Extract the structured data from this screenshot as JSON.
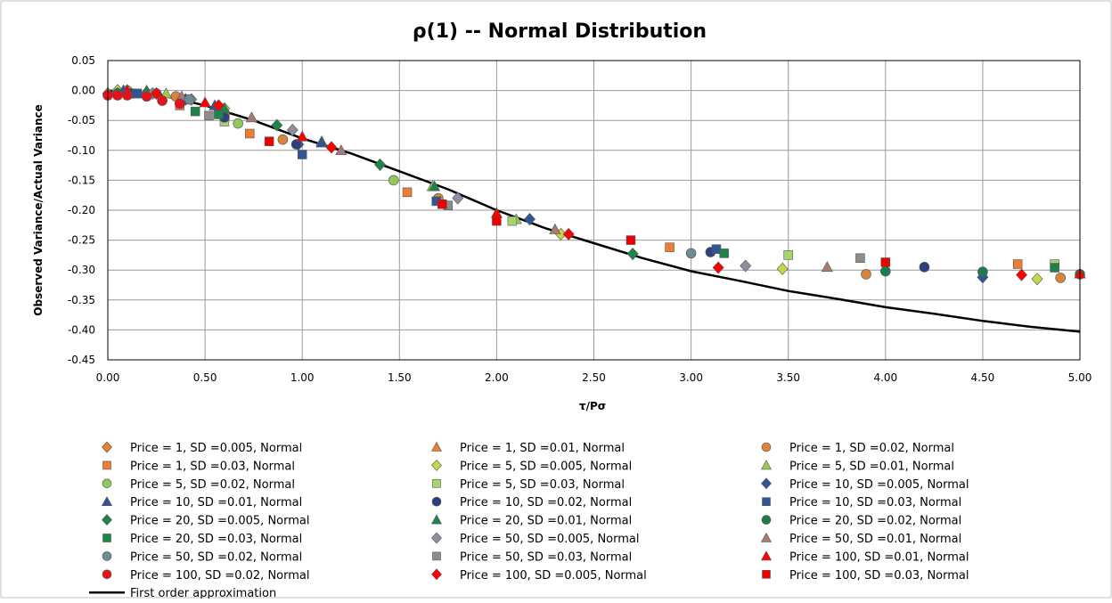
{
  "chart_data": {
    "type": "scatter",
    "title": "ρ(1) -- Normal Distribution",
    "xlabel": "τ/Pσ",
    "ylabel": "Observed Variance/Actual Variance",
    "xlim": [
      0,
      5
    ],
    "ylim": [
      -0.45,
      0.05
    ],
    "x_ticks": [
      "0.00",
      "0.50",
      "1.00",
      "1.50",
      "2.00",
      "2.50",
      "3.00",
      "3.50",
      "4.00",
      "4.50",
      "5.00"
    ],
    "y_ticks": [
      "0.05",
      "0.00",
      "-0.05",
      "-0.10",
      "-0.15",
      "-0.20",
      "-0.25",
      "-0.30",
      "-0.35",
      "-0.40",
      "-0.45"
    ],
    "grid": true,
    "legend_position": "bottom",
    "series": [
      {
        "name": "Price = 1, SD =0.005, Normal",
        "marker": "diamond",
        "color": "#ED7D31",
        "points": [
          [
            0.0,
            -0.005
          ],
          [
            0.05,
            0.0
          ],
          [
            0.1,
            0.0
          ]
        ]
      },
      {
        "name": "Price = 1, SD =0.01, Normal",
        "marker": "triangle",
        "color": "#ED7D31",
        "points": [
          [
            0.05,
            0.0
          ],
          [
            0.1,
            0.0
          ],
          [
            0.2,
            -0.005
          ]
        ]
      },
      {
        "name": "Price = 1, SD =0.02, Normal",
        "marker": "circle",
        "color": "#D8843D",
        "points": [
          [
            0.1,
            0.0
          ],
          [
            0.2,
            -0.005
          ],
          [
            0.35,
            -0.01
          ],
          [
            0.6,
            -0.04
          ],
          [
            0.9,
            -0.082
          ],
          [
            1.7,
            -0.18
          ],
          [
            3.9,
            -0.307
          ],
          [
            4.9,
            -0.313
          ]
        ]
      },
      {
        "name": "Price = 1, SD =0.03, Normal",
        "marker": "square",
        "color": "#ED7D31",
        "points": [
          [
            0.15,
            -0.005
          ],
          [
            0.37,
            -0.025
          ],
          [
            0.73,
            -0.072
          ],
          [
            1.54,
            -0.17
          ],
          [
            2.89,
            -0.262
          ],
          [
            4.68,
            -0.29
          ]
        ]
      },
      {
        "name": "Price = 5, SD =0.005, Normal",
        "marker": "diamond",
        "color": "#C6D64B",
        "points": [
          [
            0.05,
            0.0
          ],
          [
            0.1,
            -0.005
          ],
          [
            0.6,
            -0.03
          ],
          [
            2.33,
            -0.24
          ],
          [
            3.47,
            -0.298
          ],
          [
            4.78,
            -0.315
          ]
        ]
      },
      {
        "name": "Price = 5, SD =0.01, Normal",
        "marker": "triangle",
        "color": "#9BCB53",
        "points": [
          [
            0.08,
            0.0
          ],
          [
            0.3,
            -0.005
          ],
          [
            0.55,
            -0.025
          ],
          [
            1.1,
            -0.085
          ],
          [
            1.67,
            -0.16
          ],
          [
            2.1,
            -0.215
          ]
        ]
      },
      {
        "name": "Price = 5, SD =0.02, Normal",
        "marker": "circle",
        "color": "#92C760",
        "points": [
          [
            0.1,
            -0.005
          ],
          [
            0.67,
            -0.055
          ],
          [
            1.47,
            -0.15
          ]
        ]
      },
      {
        "name": "Price = 5, SD =0.03, Normal",
        "marker": "square",
        "color": "#A6D470",
        "points": [
          [
            0.13,
            -0.005
          ],
          [
            0.6,
            -0.052
          ],
          [
            2.08,
            -0.218
          ],
          [
            3.5,
            -0.275
          ],
          [
            4.87,
            -0.29
          ]
        ]
      },
      {
        "name": "Price = 10, SD =0.005, Normal",
        "marker": "diamond",
        "color": "#2F5597",
        "points": [
          [
            0.05,
            -0.005
          ],
          [
            0.4,
            -0.015
          ],
          [
            0.98,
            -0.09
          ],
          [
            2.17,
            -0.215
          ],
          [
            4.5,
            -0.312
          ]
        ]
      },
      {
        "name": "Price = 10, SD =0.01, Normal",
        "marker": "triangle",
        "color": "#2F5597",
        "points": [
          [
            0.08,
            0.0
          ],
          [
            0.55,
            -0.025
          ],
          [
            1.1,
            -0.087
          ]
        ]
      },
      {
        "name": "Price = 10, SD =0.02, Normal",
        "marker": "circle",
        "color": "#2E3F7F",
        "points": [
          [
            0.12,
            -0.005
          ],
          [
            0.6,
            -0.045
          ],
          [
            0.97,
            -0.09
          ],
          [
            3.1,
            -0.27
          ],
          [
            4.2,
            -0.295
          ]
        ]
      },
      {
        "name": "Price = 10, SD =0.03, Normal",
        "marker": "square",
        "color": "#2F5597",
        "points": [
          [
            0.15,
            -0.005
          ],
          [
            1.0,
            -0.107
          ],
          [
            1.69,
            -0.185
          ],
          [
            3.13,
            -0.265
          ]
        ]
      },
      {
        "name": "Price = 20, SD =0.005, Normal",
        "marker": "diamond",
        "color": "#1E8449",
        "points": [
          [
            0.1,
            -0.005
          ],
          [
            0.87,
            -0.058
          ],
          [
            1.4,
            -0.124
          ],
          [
            2.7,
            -0.273
          ]
        ]
      },
      {
        "name": "Price = 20, SD =0.01, Normal",
        "marker": "triangle",
        "color": "#1E8449",
        "points": [
          [
            0.2,
            0.0
          ],
          [
            0.6,
            -0.03
          ],
          [
            1.68,
            -0.16
          ]
        ]
      },
      {
        "name": "Price = 20, SD =0.02, Normal",
        "marker": "circle",
        "color": "#1E7A4C",
        "points": [
          [
            0.05,
            -0.005
          ],
          [
            4.0,
            -0.302
          ],
          [
            4.5,
            -0.303
          ],
          [
            5.0,
            -0.307
          ]
        ]
      },
      {
        "name": "Price = 20, SD =0.03, Normal",
        "marker": "square",
        "color": "#1E8449",
        "points": [
          [
            0.45,
            -0.035
          ],
          [
            0.57,
            -0.04
          ],
          [
            3.17,
            -0.272
          ],
          [
            4.87,
            -0.296
          ]
        ]
      },
      {
        "name": "Price = 50, SD =0.005, Normal",
        "marker": "diamond",
        "color": "#8E8E9E",
        "points": [
          [
            0.23,
            -0.005
          ],
          [
            0.43,
            -0.015
          ],
          [
            0.95,
            -0.066
          ],
          [
            1.8,
            -0.18
          ],
          [
            3.28,
            -0.293
          ]
        ]
      },
      {
        "name": "Price = 50, SD =0.01, Normal",
        "marker": "triangle",
        "color": "#A87A74",
        "points": [
          [
            0.38,
            -0.01
          ],
          [
            0.74,
            -0.045
          ],
          [
            1.2,
            -0.1
          ],
          [
            2.3,
            -0.232
          ],
          [
            3.7,
            -0.295
          ]
        ]
      },
      {
        "name": "Price = 50, SD =0.02, Normal",
        "marker": "circle",
        "color": "#6D8B93",
        "points": [
          [
            0.25,
            -0.005
          ],
          [
            0.42,
            -0.015
          ],
          [
            3.0,
            -0.272
          ]
        ]
      },
      {
        "name": "Price = 50, SD =0.03, Normal",
        "marker": "square",
        "color": "#8C8C8C",
        "points": [
          [
            0.52,
            -0.042
          ],
          [
            1.75,
            -0.192
          ],
          [
            3.87,
            -0.28
          ]
        ]
      },
      {
        "name": "Price = 100, SD =0.01, Normal",
        "marker": "triangle",
        "color": "#FF0000",
        "points": [
          [
            0.1,
            0.0
          ],
          [
            0.5,
            -0.02
          ],
          [
            1.0,
            -0.077
          ],
          [
            2.0,
            -0.205
          ],
          [
            5.0,
            -0.306
          ]
        ]
      },
      {
        "name": "Price = 100, SD =0.02, Normal",
        "marker": "circle",
        "color": "#E8101A",
        "points": [
          [
            0.0,
            -0.008
          ],
          [
            0.05,
            -0.008
          ],
          [
            0.1,
            -0.008
          ],
          [
            0.2,
            -0.01
          ],
          [
            0.28,
            -0.017
          ],
          [
            0.37,
            -0.022
          ]
        ]
      },
      {
        "name": "Price = 100, SD =0.005, Normal",
        "marker": "diamond",
        "color": "#FF0000",
        "points": [
          [
            0.25,
            -0.005
          ],
          [
            0.57,
            -0.025
          ],
          [
            1.15,
            -0.095
          ],
          [
            2.37,
            -0.24
          ],
          [
            3.14,
            -0.296
          ],
          [
            4.7,
            -0.308
          ]
        ]
      },
      {
        "name": "Price = 100, SD =0.03, Normal",
        "marker": "square",
        "color": "#EE0000",
        "points": [
          [
            0.83,
            -0.085
          ],
          [
            1.72,
            -0.19
          ],
          [
            2.0,
            -0.218
          ],
          [
            2.69,
            -0.25
          ],
          [
            4.0,
            -0.287
          ]
        ]
      }
    ],
    "curve": {
      "name": "First order approximation",
      "color": "#000000",
      "points": [
        [
          0,
          0
        ],
        [
          0.25,
          -0.006
        ],
        [
          0.5,
          -0.025
        ],
        [
          0.75,
          -0.05
        ],
        [
          1.0,
          -0.08
        ],
        [
          1.25,
          -0.105
        ],
        [
          1.5,
          -0.135
        ],
        [
          1.75,
          -0.165
        ],
        [
          2.0,
          -0.2
        ],
        [
          2.25,
          -0.23
        ],
        [
          2.5,
          -0.255
        ],
        [
          2.75,
          -0.28
        ],
        [
          3.0,
          -0.302
        ],
        [
          3.25,
          -0.318
        ],
        [
          3.5,
          -0.335
        ],
        [
          3.75,
          -0.348
        ],
        [
          4.0,
          -0.362
        ],
        [
          4.25,
          -0.373
        ],
        [
          4.5,
          -0.385
        ],
        [
          4.75,
          -0.395
        ],
        [
          5.0,
          -0.403
        ]
      ]
    }
  }
}
